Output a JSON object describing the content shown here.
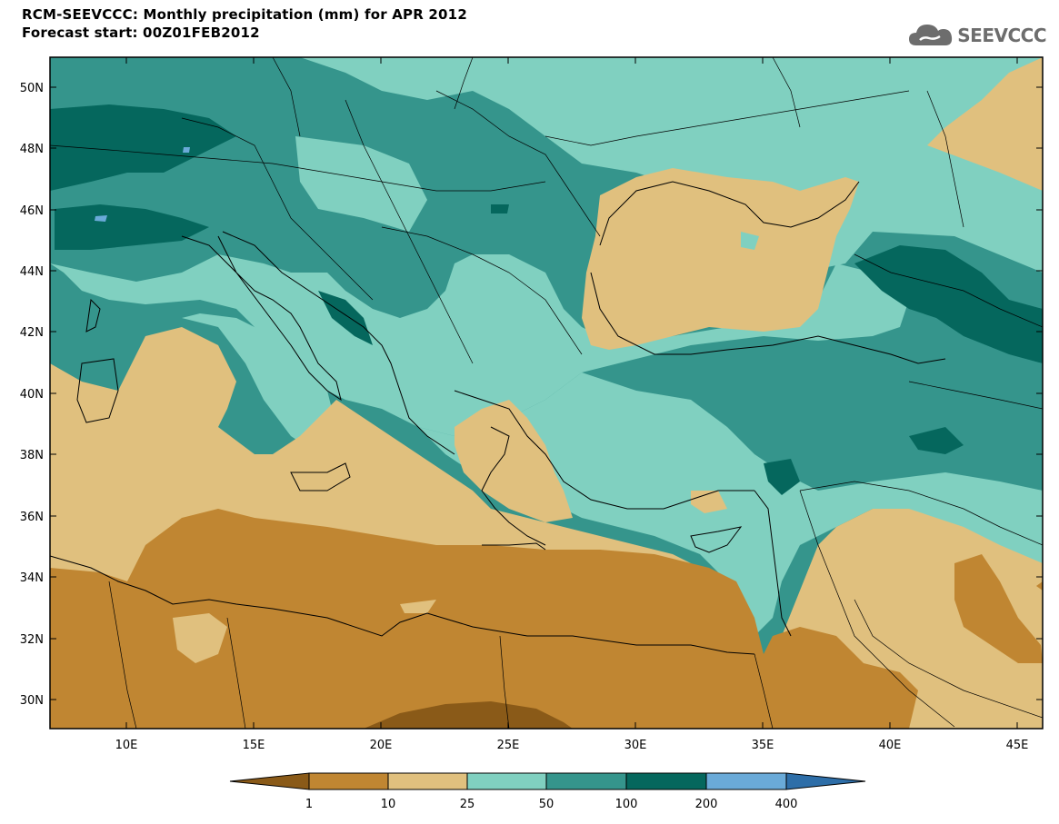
{
  "header": {
    "title": "RCM-SEEVCCC: Monthly precipitation (mm) for APR 2012",
    "subtitle": "Forecast start: 00Z01FEB2012"
  },
  "logo": {
    "text": "SEEVCCC",
    "icon": "cloud-icon"
  },
  "map": {
    "lat_labels": [
      "50N",
      "48N",
      "46N",
      "44N",
      "42N",
      "40N",
      "38N",
      "36N",
      "34N",
      "32N",
      "30N"
    ],
    "lon_labels": [
      "10E",
      "15E",
      "20E",
      "25E",
      "30E",
      "35E",
      "40E",
      "45E"
    ],
    "extent": {
      "lon": [
        7,
        46
      ],
      "lat": [
        29,
        51
      ]
    }
  },
  "legend": {
    "tick_labels": [
      "1",
      "10",
      "25",
      "50",
      "100",
      "200",
      "400"
    ],
    "colors": [
      "#8a5a18",
      "#c08632",
      "#e0c07e",
      "#80d0c0",
      "#35958c",
      "#05675d",
      "#6aaad8",
      "#2e6ea8"
    ]
  }
}
